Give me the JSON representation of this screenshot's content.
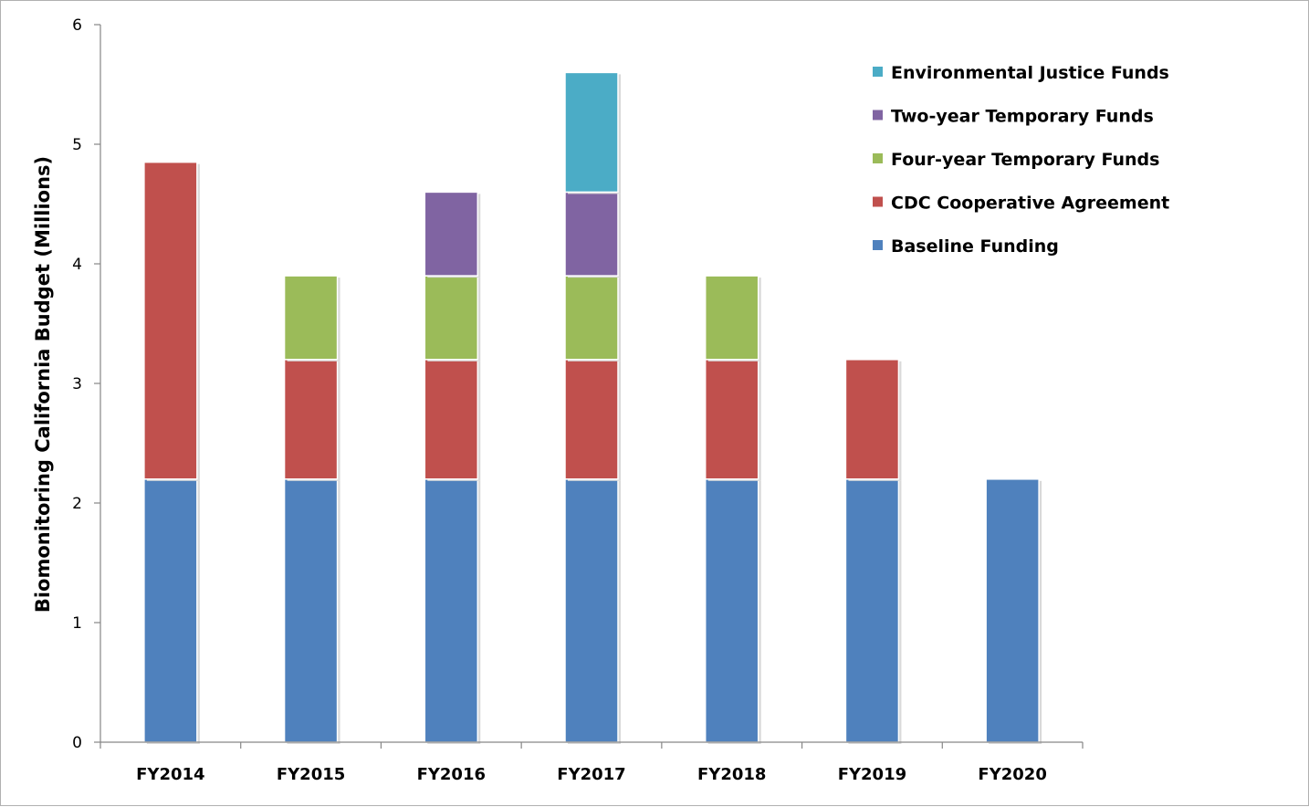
{
  "chart_data": {
    "type": "bar",
    "stacked": true,
    "categories": [
      "FY2014",
      "FY2015",
      "FY2016",
      "FY2017",
      "FY2018",
      "FY2019",
      "FY2020"
    ],
    "ylabel": "Biomonitoring California Budget (Millions)",
    "xlabel": "",
    "ylim": [
      0,
      6
    ],
    "yticks": [
      0,
      1,
      2,
      3,
      4,
      5,
      6
    ],
    "grid": false,
    "legend_position": "top-right",
    "series": [
      {
        "name": "Baseline Funding",
        "color": "#4F81BD",
        "values": [
          2.2,
          2.2,
          2.2,
          2.2,
          2.2,
          2.2,
          2.2
        ]
      },
      {
        "name": "CDC Cooperative Agreement",
        "color": "#C0504D",
        "values": [
          2.65,
          1.0,
          1.0,
          1.0,
          1.0,
          1.0,
          0
        ]
      },
      {
        "name": "Four-year Temporary Funds",
        "color": "#9BBB59",
        "values": [
          0,
          0.7,
          0.7,
          0.7,
          0.7,
          0,
          0
        ]
      },
      {
        "name": "Two-year Temporary Funds",
        "color": "#8064A2",
        "values": [
          0,
          0,
          0.7,
          0.7,
          0,
          0,
          0
        ]
      },
      {
        "name": "Environmental Justice Funds",
        "color": "#4BACC6",
        "values": [
          0,
          0,
          0,
          1.0,
          0,
          0,
          0
        ]
      }
    ]
  }
}
